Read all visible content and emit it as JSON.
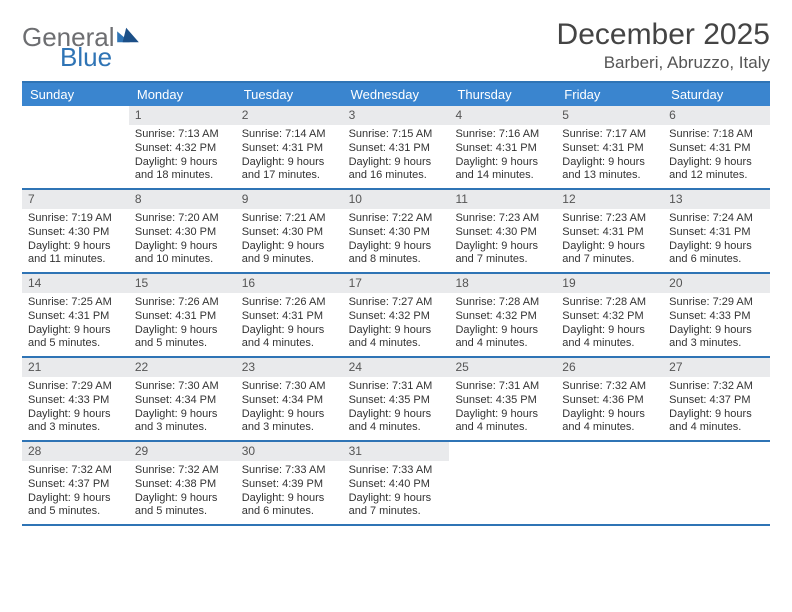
{
  "logo": {
    "general": "General",
    "blue": "Blue"
  },
  "title": "December 2025",
  "location": "Barberi, Abruzzo, Italy",
  "colors": {
    "accent": "#2f74b5",
    "header_bg": "#3a85cf",
    "daynum_bg": "#e9eaec",
    "logo_gray": "#6d6e71"
  },
  "dow": [
    "Sunday",
    "Monday",
    "Tuesday",
    "Wednesday",
    "Thursday",
    "Friday",
    "Saturday"
  ],
  "weeks": [
    [
      {
        "n": "",
        "sr": "",
        "ss": "",
        "dl": ""
      },
      {
        "n": "1",
        "sr": "Sunrise: 7:13 AM",
        "ss": "Sunset: 4:32 PM",
        "dl": "Daylight: 9 hours and 18 minutes."
      },
      {
        "n": "2",
        "sr": "Sunrise: 7:14 AM",
        "ss": "Sunset: 4:31 PM",
        "dl": "Daylight: 9 hours and 17 minutes."
      },
      {
        "n": "3",
        "sr": "Sunrise: 7:15 AM",
        "ss": "Sunset: 4:31 PM",
        "dl": "Daylight: 9 hours and 16 minutes."
      },
      {
        "n": "4",
        "sr": "Sunrise: 7:16 AM",
        "ss": "Sunset: 4:31 PM",
        "dl": "Daylight: 9 hours and 14 minutes."
      },
      {
        "n": "5",
        "sr": "Sunrise: 7:17 AM",
        "ss": "Sunset: 4:31 PM",
        "dl": "Daylight: 9 hours and 13 minutes."
      },
      {
        "n": "6",
        "sr": "Sunrise: 7:18 AM",
        "ss": "Sunset: 4:31 PM",
        "dl": "Daylight: 9 hours and 12 minutes."
      }
    ],
    [
      {
        "n": "7",
        "sr": "Sunrise: 7:19 AM",
        "ss": "Sunset: 4:30 PM",
        "dl": "Daylight: 9 hours and 11 minutes."
      },
      {
        "n": "8",
        "sr": "Sunrise: 7:20 AM",
        "ss": "Sunset: 4:30 PM",
        "dl": "Daylight: 9 hours and 10 minutes."
      },
      {
        "n": "9",
        "sr": "Sunrise: 7:21 AM",
        "ss": "Sunset: 4:30 PM",
        "dl": "Daylight: 9 hours and 9 minutes."
      },
      {
        "n": "10",
        "sr": "Sunrise: 7:22 AM",
        "ss": "Sunset: 4:30 PM",
        "dl": "Daylight: 9 hours and 8 minutes."
      },
      {
        "n": "11",
        "sr": "Sunrise: 7:23 AM",
        "ss": "Sunset: 4:30 PM",
        "dl": "Daylight: 9 hours and 7 minutes."
      },
      {
        "n": "12",
        "sr": "Sunrise: 7:23 AM",
        "ss": "Sunset: 4:31 PM",
        "dl": "Daylight: 9 hours and 7 minutes."
      },
      {
        "n": "13",
        "sr": "Sunrise: 7:24 AM",
        "ss": "Sunset: 4:31 PM",
        "dl": "Daylight: 9 hours and 6 minutes."
      }
    ],
    [
      {
        "n": "14",
        "sr": "Sunrise: 7:25 AM",
        "ss": "Sunset: 4:31 PM",
        "dl": "Daylight: 9 hours and 5 minutes."
      },
      {
        "n": "15",
        "sr": "Sunrise: 7:26 AM",
        "ss": "Sunset: 4:31 PM",
        "dl": "Daylight: 9 hours and 5 minutes."
      },
      {
        "n": "16",
        "sr": "Sunrise: 7:26 AM",
        "ss": "Sunset: 4:31 PM",
        "dl": "Daylight: 9 hours and 4 minutes."
      },
      {
        "n": "17",
        "sr": "Sunrise: 7:27 AM",
        "ss": "Sunset: 4:32 PM",
        "dl": "Daylight: 9 hours and 4 minutes."
      },
      {
        "n": "18",
        "sr": "Sunrise: 7:28 AM",
        "ss": "Sunset: 4:32 PM",
        "dl": "Daylight: 9 hours and 4 minutes."
      },
      {
        "n": "19",
        "sr": "Sunrise: 7:28 AM",
        "ss": "Sunset: 4:32 PM",
        "dl": "Daylight: 9 hours and 4 minutes."
      },
      {
        "n": "20",
        "sr": "Sunrise: 7:29 AM",
        "ss": "Sunset: 4:33 PM",
        "dl": "Daylight: 9 hours and 3 minutes."
      }
    ],
    [
      {
        "n": "21",
        "sr": "Sunrise: 7:29 AM",
        "ss": "Sunset: 4:33 PM",
        "dl": "Daylight: 9 hours and 3 minutes."
      },
      {
        "n": "22",
        "sr": "Sunrise: 7:30 AM",
        "ss": "Sunset: 4:34 PM",
        "dl": "Daylight: 9 hours and 3 minutes."
      },
      {
        "n": "23",
        "sr": "Sunrise: 7:30 AM",
        "ss": "Sunset: 4:34 PM",
        "dl": "Daylight: 9 hours and 3 minutes."
      },
      {
        "n": "24",
        "sr": "Sunrise: 7:31 AM",
        "ss": "Sunset: 4:35 PM",
        "dl": "Daylight: 9 hours and 4 minutes."
      },
      {
        "n": "25",
        "sr": "Sunrise: 7:31 AM",
        "ss": "Sunset: 4:35 PM",
        "dl": "Daylight: 9 hours and 4 minutes."
      },
      {
        "n": "26",
        "sr": "Sunrise: 7:32 AM",
        "ss": "Sunset: 4:36 PM",
        "dl": "Daylight: 9 hours and 4 minutes."
      },
      {
        "n": "27",
        "sr": "Sunrise: 7:32 AM",
        "ss": "Sunset: 4:37 PM",
        "dl": "Daylight: 9 hours and 4 minutes."
      }
    ],
    [
      {
        "n": "28",
        "sr": "Sunrise: 7:32 AM",
        "ss": "Sunset: 4:37 PM",
        "dl": "Daylight: 9 hours and 5 minutes."
      },
      {
        "n": "29",
        "sr": "Sunrise: 7:32 AM",
        "ss": "Sunset: 4:38 PM",
        "dl": "Daylight: 9 hours and 5 minutes."
      },
      {
        "n": "30",
        "sr": "Sunrise: 7:33 AM",
        "ss": "Sunset: 4:39 PM",
        "dl": "Daylight: 9 hours and 6 minutes."
      },
      {
        "n": "31",
        "sr": "Sunrise: 7:33 AM",
        "ss": "Sunset: 4:40 PM",
        "dl": "Daylight: 9 hours and 7 minutes."
      },
      {
        "n": "",
        "sr": "",
        "ss": "",
        "dl": ""
      },
      {
        "n": "",
        "sr": "",
        "ss": "",
        "dl": ""
      },
      {
        "n": "",
        "sr": "",
        "ss": "",
        "dl": ""
      }
    ]
  ]
}
